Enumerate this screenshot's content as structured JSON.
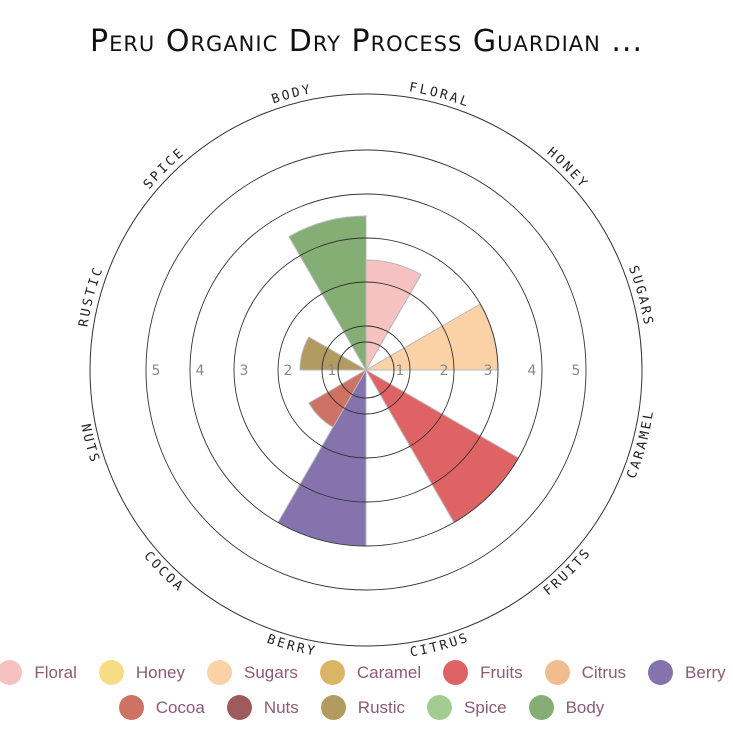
{
  "chart_data": {
    "type": "radial-bar",
    "title": "Peru Organic Dry Process Guardian ...",
    "rmax": 5,
    "ticks": [
      1,
      2,
      3,
      4,
      5
    ],
    "categories": [
      {
        "label": "FLORAL",
        "value": 2.5,
        "color": "#f4b6b6"
      },
      {
        "label": "HONEY",
        "value": 0,
        "color": "#f5d76e"
      },
      {
        "label": "SUGARS",
        "value": 3,
        "color": "#f9ca96"
      },
      {
        "label": "CARAMEL",
        "value": 0,
        "color": "#d4a84b"
      },
      {
        "label": "FRUITS",
        "value": 4,
        "color": "#d9484a"
      },
      {
        "label": "CITRUS",
        "value": 0,
        "color": "#efb27a"
      },
      {
        "label": "BERRY",
        "value": 4,
        "color": "#6f5b9f"
      },
      {
        "label": "COCOA",
        "value": 1.5,
        "color": "#c55a48"
      },
      {
        "label": "NUTS",
        "value": 0,
        "color": "#8e3e3e"
      },
      {
        "label": "RUSTIC",
        "value": 1.5,
        "color": "#a48945"
      },
      {
        "label": "SPICE",
        "value": 0,
        "color": "#93c47d"
      },
      {
        "label": "BODY",
        "value": 3.5,
        "color": "#6fa05c"
      }
    ],
    "legend": [
      [
        {
          "name": "Floral",
          "color": "#f4b6b6"
        },
        {
          "name": "Honey",
          "color": "#f5d76e"
        },
        {
          "name": "Sugars",
          "color": "#f9ca96"
        },
        {
          "name": "Caramel",
          "color": "#d4a84b"
        },
        {
          "name": "Fruits",
          "color": "#d9484a"
        },
        {
          "name": "Citrus",
          "color": "#efb27a"
        },
        {
          "name": "Berry",
          "color": "#6f5b9f"
        }
      ],
      [
        {
          "name": "Cocoa",
          "color": "#c55a48"
        },
        {
          "name": "Nuts",
          "color": "#8e3e3e"
        },
        {
          "name": "Rustic",
          "color": "#a48945"
        },
        {
          "name": "Spice",
          "color": "#93c47d"
        },
        {
          "name": "Body",
          "color": "#6fa05c"
        }
      ]
    ]
  }
}
